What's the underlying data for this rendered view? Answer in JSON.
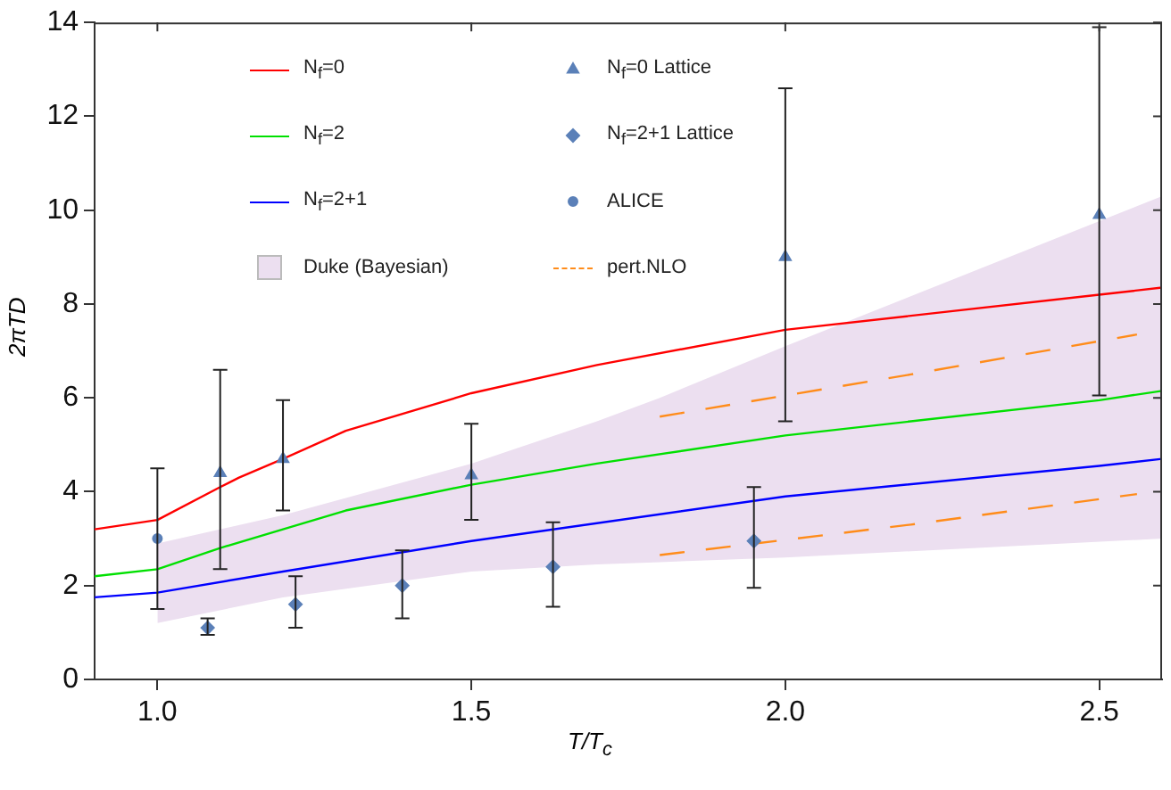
{
  "chart_data": {
    "type": "line",
    "xlabel": "T/T$_{c}$",
    "ylabel": "2πTD",
    "xlim": [
      0.9,
      2.6
    ],
    "xticks": [
      {
        "value": 1,
        "label": "1.0"
      },
      1.5,
      {
        "value": 2,
        "label": "2.0"
      },
      2.5
    ],
    "ylim": [
      0,
      14
    ],
    "yticks": [
      0,
      2,
      4,
      6,
      8,
      10,
      12,
      14
    ],
    "grid": false,
    "legend": "top left",
    "series": [
      {
        "name": "N$_{f}$=0",
        "type": "line",
        "color": "#ff0000",
        "marker": "none",
        "line_style": "solid",
        "x": [
          0.9,
          1.0,
          1.1,
          1.13,
          1.2,
          1.3,
          1.5,
          1.7,
          2.0,
          2.5,
          2.6
        ],
        "values": [
          3.2,
          3.4,
          4.1,
          4.3,
          4.7,
          5.3,
          6.1,
          6.7,
          7.45,
          8.2,
          8.35
        ]
      },
      {
        "name": "N$_{f}$=2",
        "type": "line",
        "color": "#00e000",
        "marker": "none",
        "line_style": "solid",
        "x": [
          0.9,
          1.0,
          1.1,
          1.2,
          1.3,
          1.5,
          1.7,
          2.0,
          2.5,
          2.6
        ],
        "values": [
          2.2,
          2.35,
          2.8,
          3.2,
          3.6,
          4.15,
          4.6,
          5.2,
          5.95,
          6.15
        ]
      },
      {
        "name": "N$_{f}$=2+1",
        "type": "line",
        "color": "#0000ff",
        "marker": "none",
        "line_style": "solid",
        "x": [
          0.9,
          1.0,
          1.2,
          1.5,
          2.0,
          2.5,
          2.6
        ],
        "values": [
          1.75,
          1.85,
          2.3,
          2.95,
          3.9,
          4.55,
          4.7
        ]
      },
      {
        "name": "Duke (Bayesian)",
        "type": "area",
        "color": "#ecdff0",
        "x": [
          1.0,
          1.2,
          1.5,
          1.7,
          1.8,
          2.0,
          2.6
        ],
        "values": [
          null,
          null,
          null,
          null,
          null,
          null,
          null
        ],
        "lower": [
          1.2,
          1.75,
          2.3,
          2.45,
          2.5,
          2.6,
          3.0
        ],
        "upper": [
          2.9,
          3.5,
          4.6,
          5.5,
          6.0,
          7.1,
          10.3
        ]
      },
      {
        "name": "N$_{f}$=0 Lattice",
        "type": "scatter",
        "color": "#5b80b8",
        "marker": "triangle",
        "x": [
          1.1,
          1.2,
          1.5,
          2.0,
          2.5
        ],
        "values": [
          4.4,
          4.7,
          4.35,
          9.0,
          9.9
        ],
        "errors": [
          [
            2.35,
            6.6
          ],
          [
            3.6,
            5.95
          ],
          [
            3.4,
            5.45
          ],
          [
            5.5,
            12.6
          ],
          [
            6.05,
            13.9
          ]
        ]
      },
      {
        "name": "N$_{f}$=2+1 Lattice",
        "type": "scatter",
        "color": "#5b80b8",
        "marker": "diamond",
        "x": [
          1.08,
          1.22,
          1.39,
          1.63,
          1.95
        ],
        "values": [
          1.1,
          1.6,
          2.0,
          2.4,
          2.95
        ],
        "errors": [
          [
            0.95,
            1.3
          ],
          [
            1.1,
            2.2
          ],
          [
            1.3,
            2.75
          ],
          [
            1.55,
            3.35
          ],
          [
            1.95,
            4.1
          ]
        ]
      },
      {
        "name": "ALICE",
        "type": "scatter",
        "color": "#5b80b8",
        "marker": "circle",
        "x": [
          1.0
        ],
        "values": [
          3.0
        ],
        "errors": [
          [
            1.5,
            4.5
          ]
        ]
      },
      {
        "name": "pert.NLO",
        "type": "line",
        "color": "#ff8c1a",
        "marker": "none",
        "line_style": "dashed",
        "x": [
          1.8,
          2.2,
          2.56
        ],
        "values": [
          5.6,
          6.5,
          7.35
        ]
      },
      {
        "type": "line",
        "color": "#ff8c1a",
        "marker": "none",
        "line_style": "dashed",
        "x": [
          1.8,
          2.2,
          2.56
        ],
        "values": [
          2.65,
          3.3,
          3.95
        ]
      }
    ]
  }
}
